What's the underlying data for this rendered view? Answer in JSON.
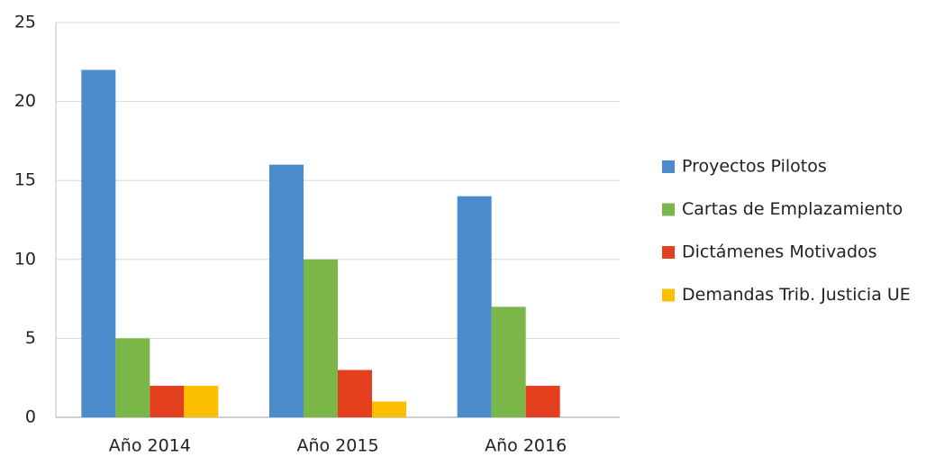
{
  "chart_data": {
    "type": "bar",
    "categories": [
      "Año 2014",
      "Año 2015",
      "Año 2016"
    ],
    "series": [
      {
        "name": "Proyectos Pilotos",
        "color": "#4a8ccb",
        "values": [
          22,
          16,
          14
        ]
      },
      {
        "name": "Cartas de Emplazamiento",
        "color": "#7ab648",
        "values": [
          5,
          10,
          7
        ]
      },
      {
        "name": "Dictámenes Motivados",
        "color": "#e4401f",
        "values": [
          2,
          3,
          2
        ]
      },
      {
        "name": "Demandas Trib. Justicia UE",
        "color": "#fbbf00",
        "values": [
          2,
          1,
          0
        ]
      }
    ],
    "ylim": [
      0,
      25
    ],
    "yticks": [
      0,
      5,
      10,
      15,
      20,
      25
    ],
    "grid": true,
    "legend": "right"
  }
}
